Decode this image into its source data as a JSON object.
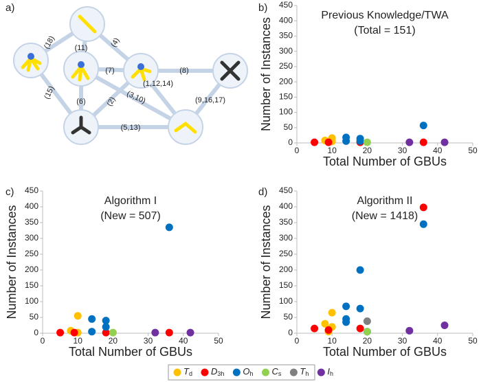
{
  "panel_labels": [
    "a)",
    "b)",
    "c)",
    "d)"
  ],
  "diagram": {
    "edge_labels": [
      "(18)",
      "(11)",
      "(4)",
      "(7)",
      "(8)",
      "(15)",
      "(6)",
      "(2)",
      "(3,10)",
      "(1,12,14)",
      "(9,16,17)",
      "(5,13)"
    ]
  },
  "legend": [
    {
      "symbol": "T",
      "sub": "d",
      "color": "#ffc000"
    },
    {
      "symbol": "D",
      "sub": "3h",
      "color": "#ff0000"
    },
    {
      "symbol": "O",
      "sub": "h",
      "color": "#0070c0"
    },
    {
      "symbol": "C",
      "sub": "s",
      "color": "#92d050"
    },
    {
      "symbol": "T",
      "sub": "h",
      "color": "#808080"
    },
    {
      "symbol": "I",
      "sub": "h",
      "color": "#7030a0"
    }
  ],
  "chart_data": [
    {
      "type": "scatter",
      "title": "Previous Knowledge/TWA",
      "subtitle": "(Total = 151)",
      "xlabel": "Total Number of GBUs",
      "ylabel": "Number of Instances",
      "xlim": [
        0,
        50
      ],
      "xticks": [
        0,
        10,
        20,
        30,
        40,
        50
      ],
      "ylim": [
        0,
        450
      ],
      "yticks": [
        0,
        50,
        100,
        150,
        200,
        250,
        300,
        350,
        400,
        450
      ],
      "series": [
        {
          "color": "#ffc000",
          "x": [
            8,
            10,
            10
          ],
          "values": [
            8,
            16,
            5
          ]
        },
        {
          "color": "#ff0000",
          "x": [
            5,
            9,
            18,
            36
          ],
          "values": [
            2,
            2,
            2,
            2
          ]
        },
        {
          "color": "#0070c0",
          "x": [
            14,
            14,
            18,
            18,
            36
          ],
          "values": [
            18,
            6,
            14,
            6,
            57
          ]
        },
        {
          "color": "#92d050",
          "x": [
            20
          ],
          "values": [
            2
          ]
        },
        {
          "color": "#808080",
          "x": [],
          "values": []
        },
        {
          "color": "#7030a0",
          "x": [
            32,
            42
          ],
          "values": [
            2,
            2
          ]
        }
      ]
    },
    {
      "type": "scatter",
      "title": "Algorithm I",
      "subtitle": "(New = 507)",
      "xlabel": "Total Number of GBUs",
      "ylabel": "Number of Instances",
      "xlim": [
        0,
        50
      ],
      "xticks": [
        0,
        10,
        20,
        30,
        40,
        50
      ],
      "ylim": [
        0,
        450
      ],
      "yticks": [
        0,
        50,
        100,
        150,
        200,
        250,
        300,
        350,
        400,
        450
      ],
      "series": [
        {
          "color": "#ffc000",
          "x": [
            8,
            10,
            10
          ],
          "values": [
            8,
            55,
            2
          ]
        },
        {
          "color": "#ff0000",
          "x": [
            5,
            9,
            18,
            36
          ],
          "values": [
            2,
            2,
            2,
            2
          ]
        },
        {
          "color": "#0070c0",
          "x": [
            14,
            14,
            18,
            18,
            36
          ],
          "values": [
            45,
            5,
            40,
            20,
            335
          ]
        },
        {
          "color": "#92d050",
          "x": [
            20
          ],
          "values": [
            2
          ]
        },
        {
          "color": "#808080",
          "x": [],
          "values": []
        },
        {
          "color": "#7030a0",
          "x": [
            32,
            42
          ],
          "values": [
            2,
            2
          ]
        }
      ]
    },
    {
      "type": "scatter",
      "title": "Algorithm II",
      "subtitle": "(New = 1418)",
      "xlabel": "Total Number of GBUs",
      "ylabel": "Number of Instances",
      "xlim": [
        0,
        50
      ],
      "xticks": [
        0,
        10,
        20,
        30,
        40,
        50
      ],
      "ylim": [
        0,
        450
      ],
      "yticks": [
        0,
        50,
        100,
        150,
        200,
        250,
        300,
        350,
        400,
        450
      ],
      "series": [
        {
          "color": "#ffc000",
          "x": [
            8,
            10,
            10,
            9
          ],
          "values": [
            30,
            65,
            20,
            5
          ]
        },
        {
          "color": "#ff0000",
          "x": [
            5,
            9,
            18,
            36
          ],
          "values": [
            15,
            10,
            15,
            398
          ]
        },
        {
          "color": "#0070c0",
          "x": [
            14,
            14,
            14,
            18,
            18,
            36,
            20
          ],
          "values": [
            85,
            45,
            35,
            200,
            78,
            345,
            5
          ]
        },
        {
          "color": "#92d050",
          "x": [
            20
          ],
          "values": [
            5
          ]
        },
        {
          "color": "#808080",
          "x": [
            20
          ],
          "values": [
            38
          ]
        },
        {
          "color": "#7030a0",
          "x": [
            32,
            42
          ],
          "values": [
            8,
            25
          ]
        }
      ]
    }
  ]
}
